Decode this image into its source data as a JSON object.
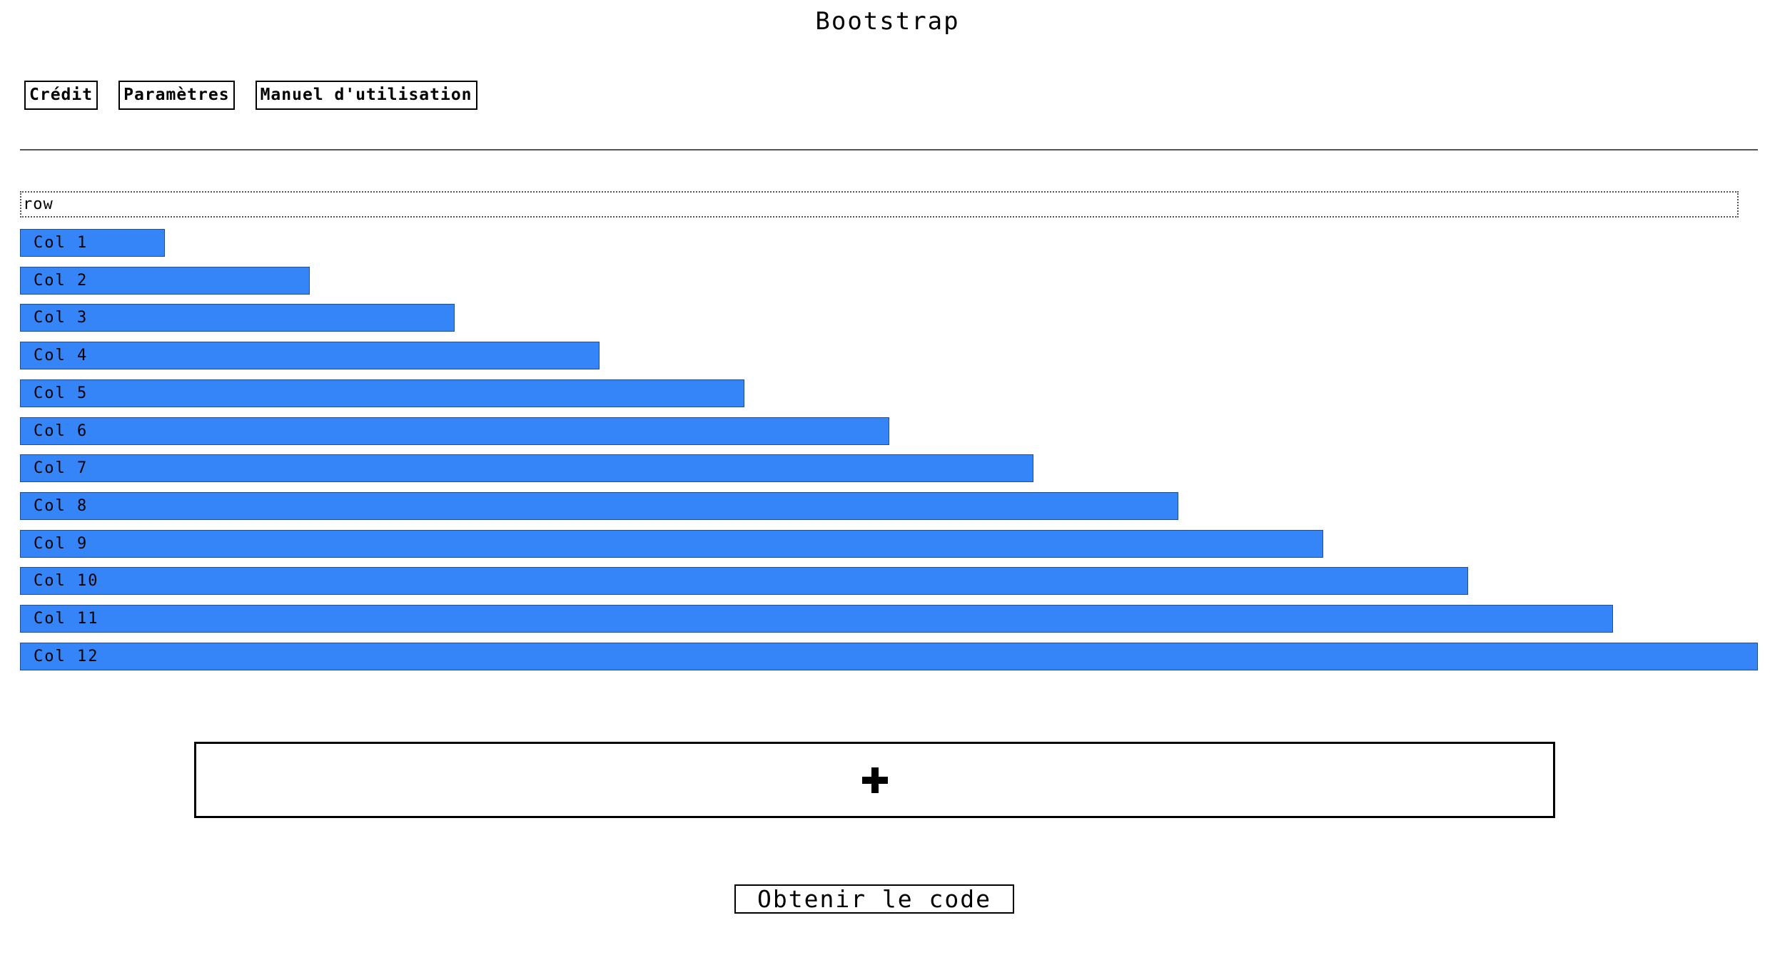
{
  "app": {
    "title": "Bootstrap"
  },
  "menu": {
    "items": [
      {
        "label": "Crédit"
      },
      {
        "label": "Paramètres"
      },
      {
        "label": "Manuel d'utilisation"
      }
    ]
  },
  "row": {
    "label": "row"
  },
  "columns": [
    {
      "label": "Col 1",
      "span": 1
    },
    {
      "label": "Col 2",
      "span": 2
    },
    {
      "label": "Col 3",
      "span": 3
    },
    {
      "label": "Col 4",
      "span": 4
    },
    {
      "label": "Col 5",
      "span": 5
    },
    {
      "label": "Col 6",
      "span": 6
    },
    {
      "label": "Col 7",
      "span": 7
    },
    {
      "label": "Col 8",
      "span": 8
    },
    {
      "label": "Col 9",
      "span": 9
    },
    {
      "label": "Col 10",
      "span": 10
    },
    {
      "label": "Col 11",
      "span": 11
    },
    {
      "label": "Col 12",
      "span": 12
    }
  ],
  "grid": {
    "total_columns": 12
  },
  "add_row": {
    "icon": "plus-icon"
  },
  "footer": {
    "get_code_label": "Obtenir le code"
  },
  "colors": {
    "column_fill": "#3584f8"
  }
}
